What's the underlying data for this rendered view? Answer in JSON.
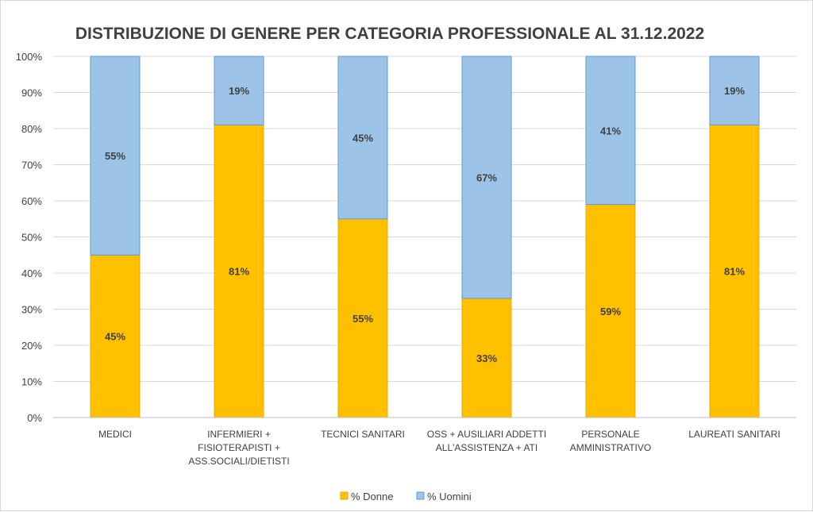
{
  "chart_data": {
    "type": "bar",
    "stacked": true,
    "title": "DISTRIBUZIONE DI GENERE PER CATEGORIA PROFESSIONALE AL 31.12.2022",
    "xlabel": "",
    "ylabel": "",
    "ylim": [
      0,
      100
    ],
    "yticks": [
      "0%",
      "10%",
      "20%",
      "30%",
      "40%",
      "50%",
      "60%",
      "70%",
      "80%",
      "90%",
      "100%"
    ],
    "grid": true,
    "legend_position": "bottom",
    "categories": [
      [
        "MEDICI"
      ],
      [
        "INFERMIERI +",
        "FISIOTERAPISTI +",
        "ASS.SOCIALI/DIETISTI"
      ],
      [
        "TECNICI SANITARI"
      ],
      [
        "OSS + AUSILIARI ADDETTI",
        "ALL'ASSISTENZA + ATI"
      ],
      [
        "PERSONALE",
        "AMMINISTRATIVO"
      ],
      [
        "LAUREATI SANITARI"
      ]
    ],
    "series": [
      {
        "name": "% Donne",
        "color": "#ffc000",
        "values": [
          45,
          81,
          55,
          33,
          59,
          81
        ],
        "labels": [
          "45%",
          "81%",
          "55%",
          "33%",
          "59%",
          "81%"
        ]
      },
      {
        "name": "% Uomini",
        "color": "#9dc3e6",
        "values": [
          55,
          19,
          45,
          67,
          41,
          19
        ],
        "labels": [
          "55%",
          "19%",
          "45%",
          "67%",
          "41%",
          "19%"
        ]
      }
    ]
  }
}
